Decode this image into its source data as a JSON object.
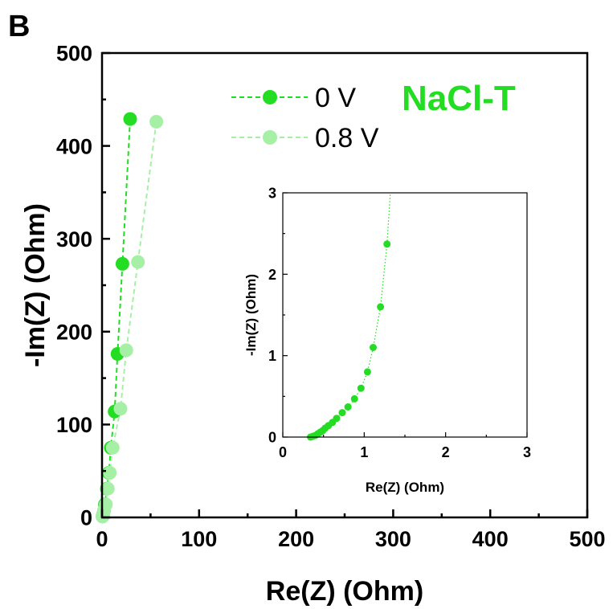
{
  "chart_data": [
    {
      "panel_label": "B",
      "type": "scatter",
      "title": "NaCl-T",
      "xlabel": "Re(Z) (Ohm)",
      "ylabel": "-Im(Z) (Ohm)",
      "xlim": [
        0,
        500
      ],
      "ylim": [
        0,
        500
      ],
      "xticks": [
        "0",
        "100",
        "200",
        "300",
        "400",
        "500"
      ],
      "yticks": [
        "0",
        "100",
        "200",
        "300",
        "400",
        "500"
      ],
      "legend_position": "top",
      "series": [
        {
          "name": "0 V",
          "color": "#22dd22",
          "line": "dashed",
          "x": [
            0.5,
            1,
            2,
            3,
            5,
            7,
            9,
            13,
            16,
            21,
            29
          ],
          "y": [
            1,
            3,
            7,
            14,
            31,
            48,
            75,
            114,
            176,
            273,
            429
          ]
        },
        {
          "name": "0.8 V",
          "color": "#a6f0a6",
          "line": "dashed",
          "x": [
            0.5,
            1,
            2,
            4,
            6,
            8,
            11,
            19,
            25,
            37,
            56
          ],
          "y": [
            1,
            3,
            7,
            14,
            31,
            48,
            75,
            117,
            180,
            275,
            426
          ]
        }
      ]
    },
    {
      "type": "scatter",
      "title": "",
      "xlabel": "Re(Z) (Ohm)",
      "ylabel": "-Im(Z) (Ohm)",
      "xlim": [
        0,
        3
      ],
      "ylim": [
        0,
        3
      ],
      "xticks": [
        "0",
        "1",
        "2",
        "3"
      ],
      "yticks": [
        "0",
        "1",
        "2",
        "3"
      ],
      "series": [
        {
          "color": "#22dd22",
          "line": "dotted",
          "x": [
            0.34,
            0.37,
            0.4,
            0.43,
            0.46,
            0.49,
            0.52,
            0.56,
            0.61,
            0.66,
            0.73,
            0.8,
            0.88,
            0.96,
            1.04,
            1.11,
            1.2,
            1.28,
            1.32
          ],
          "y": [
            0.0,
            0.01,
            0.02,
            0.04,
            0.06,
            0.08,
            0.11,
            0.14,
            0.18,
            0.23,
            0.3,
            0.37,
            0.47,
            0.6,
            0.8,
            1.1,
            1.6,
            2.37,
            3.0
          ],
          "markers": [
            true,
            true,
            true,
            true,
            true,
            true,
            true,
            true,
            true,
            true,
            true,
            true,
            true,
            true,
            true,
            true,
            true,
            true,
            false
          ]
        }
      ]
    }
  ]
}
